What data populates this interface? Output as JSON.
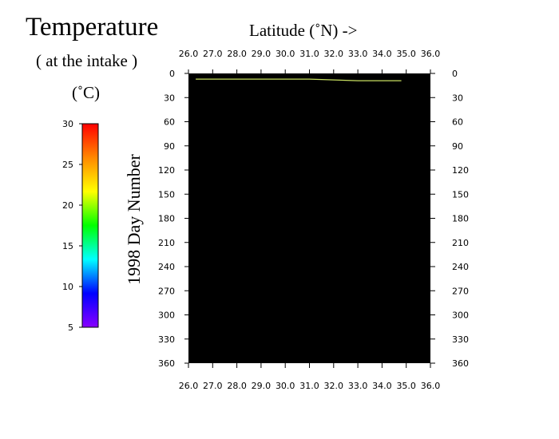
{
  "title": "Temperature",
  "subtitle": "( at the intake )",
  "colorbar": {
    "unit": "(˚C)",
    "ticks": [
      "30",
      "25",
      "20",
      "15",
      "10",
      "5"
    ],
    "range": [
      5,
      30
    ],
    "colors": [
      "#ff0000",
      "#ff8800",
      "#ffff00",
      "#00ff00",
      "#00ffff",
      "#0000ff",
      "#8800ff"
    ]
  },
  "chart_data": {
    "type": "line",
    "title": "Temperature",
    "xlabel": "Latitude (˚N) ->",
    "ylabel": "1998   Day  Number",
    "xlim": [
      26.0,
      36.0
    ],
    "ylim": [
      0,
      360
    ],
    "y_inverted": true,
    "x_ticks": [
      "26.0",
      "27.0",
      "28.0",
      "29.0",
      "30.0",
      "31.0",
      "32.0",
      "33.0",
      "34.0",
      "35.0",
      "36.0"
    ],
    "y_ticks": [
      "0",
      "30",
      "60",
      "90",
      "120",
      "150",
      "180",
      "210",
      "240",
      "270",
      "300",
      "330",
      "360"
    ],
    "background": "#000000",
    "series": [
      {
        "color": "#c8e060",
        "x": [
          26.3,
          27.8,
          29.5,
          31.0,
          32.0,
          33.0,
          34.0,
          34.8
        ],
        "y": [
          7,
          7,
          7,
          7,
          8,
          9,
          9,
          9
        ]
      }
    ]
  }
}
